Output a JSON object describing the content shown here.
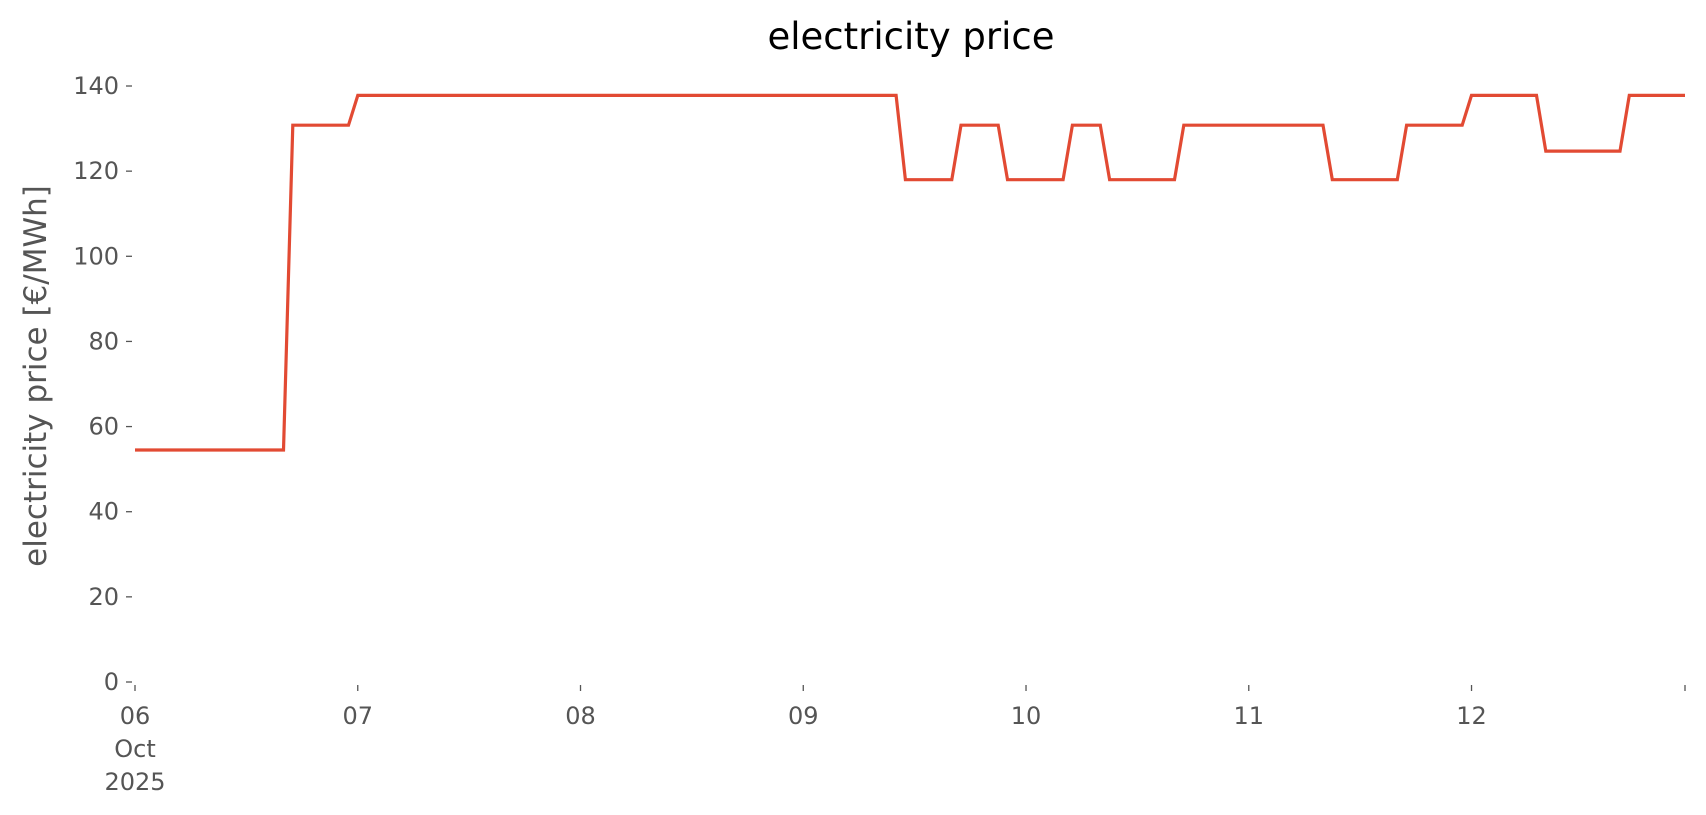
{
  "chart_data": {
    "type": "line",
    "title": "electricity price",
    "xlabel": "",
    "ylabel": "electricity price [€/MWh]",
    "ylim": [
      0,
      140
    ],
    "xlim": [
      "2025-10-06T00:00",
      "2025-10-12T23:00"
    ],
    "grid": false,
    "colors": {
      "line": "#E24A33",
      "text": "#555555",
      "title": "#000000"
    },
    "yticks": [
      0,
      20,
      40,
      60,
      80,
      100,
      120,
      140
    ],
    "xticks": [
      {
        "x": "2025-10-06T00:00",
        "lines": [
          "06",
          "Oct",
          "2025"
        ]
      },
      {
        "x": "2025-10-07T00:00",
        "lines": [
          "07"
        ]
      },
      {
        "x": "2025-10-08T00:00",
        "lines": [
          "08"
        ]
      },
      {
        "x": "2025-10-09T00:00",
        "lines": [
          "09"
        ]
      },
      {
        "x": "2025-10-10T00:00",
        "lines": [
          "10"
        ]
      },
      {
        "x": "2025-10-11T00:00",
        "lines": [
          "11"
        ]
      },
      {
        "x": "2025-10-12T00:00",
        "lines": [
          "12"
        ]
      },
      {
        "x": "2025-10-12T23:00",
        "lines": [
          ""
        ]
      }
    ],
    "series": [
      {
        "x": [
          "2025-10-06T00:00",
          "2025-10-06T16:00",
          "2025-10-06T17:00",
          "2025-10-06T23:00",
          "2025-10-07T00:00",
          "2025-10-09T10:00",
          "2025-10-09T11:00",
          "2025-10-09T16:00",
          "2025-10-09T17:00",
          "2025-10-09T21:00",
          "2025-10-09T22:00",
          "2025-10-10T04:00",
          "2025-10-10T05:00",
          "2025-10-10T08:00",
          "2025-10-10T09:00",
          "2025-10-10T16:00",
          "2025-10-10T17:00",
          "2025-10-11T08:00",
          "2025-10-11T09:00",
          "2025-10-11T16:00",
          "2025-10-11T17:00",
          "2025-10-11T23:00",
          "2025-10-12T00:00",
          "2025-10-12T07:00",
          "2025-10-12T08:00",
          "2025-10-12T16:00",
          "2025-10-12T17:00",
          "2025-10-12T23:00"
        ],
        "y": [
          54.5,
          54.5,
          130.8,
          130.8,
          137.8,
          137.8,
          118.0,
          118.0,
          130.8,
          130.8,
          118.0,
          118.0,
          130.8,
          130.8,
          118.0,
          118.0,
          130.8,
          130.8,
          118.0,
          118.0,
          130.8,
          130.8,
          137.8,
          137.8,
          124.7,
          124.7,
          137.8,
          137.8
        ]
      }
    ]
  }
}
